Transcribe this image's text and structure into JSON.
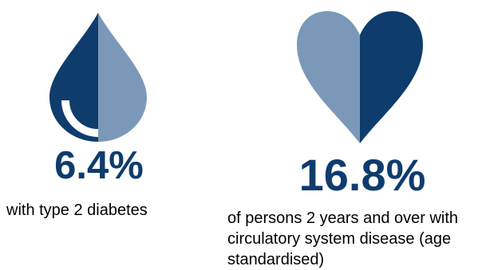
{
  "colors": {
    "dark_navy": "#0e3c6c",
    "light_blue": "#7c98b8",
    "white": "#ffffff",
    "caption_text": "#000000"
  },
  "stats": {
    "diabetes": {
      "value": "6.4%",
      "caption": "with type 2 diabetes",
      "icon": "water-drop-icon"
    },
    "circulatory": {
      "value": "16.8%",
      "caption": "of persons 2 years and over with circulatory system disease (age standardised)",
      "icon": "heart-icon"
    }
  }
}
